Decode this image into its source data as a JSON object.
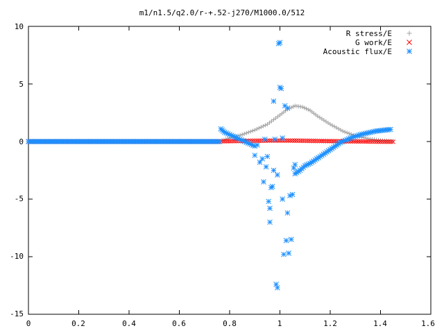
{
  "chart_data": {
    "type": "scatter",
    "title": "m1/n1.5/q2.0/r-+.52-j270/M1000.0/512",
    "xlabel": "",
    "ylabel": "",
    "xlim": [
      0,
      1.6
    ],
    "ylim": [
      -15,
      10
    ],
    "x_ticks": [
      "0",
      "0.2",
      "0.4",
      "0.6",
      "0.8",
      "1",
      "1.2",
      "1.4",
      "1.6"
    ],
    "y_ticks": [
      "10",
      "5",
      "0",
      "-5",
      "-10",
      "-15"
    ],
    "grid": false,
    "legend_position": "top-right",
    "series": [
      {
        "name": "R stress/E",
        "marker": "plus",
        "color": "#a0a0a0",
        "segments": [
          {
            "x": [
              0.0,
              0.1,
              0.2,
              0.3,
              0.4,
              0.5,
              0.6,
              0.7,
              0.76
            ],
            "y": [
              0,
              0,
              0,
              0,
              0,
              0,
              0,
              0,
              0
            ]
          },
          {
            "x": [
              0.77,
              0.8,
              0.85,
              0.9,
              0.95,
              1.0,
              1.03,
              1.06,
              1.09,
              1.12,
              1.15,
              1.2,
              1.25,
              1.3,
              1.35,
              1.4,
              1.45
            ],
            "y": [
              0.1,
              0.3,
              0.6,
              1.0,
              1.5,
              2.3,
              2.8,
              3.1,
              3.0,
              2.7,
              2.2,
              1.5,
              0.9,
              0.5,
              0.25,
              0.1,
              0.05
            ]
          }
        ]
      },
      {
        "name": "G work/E",
        "marker": "cross",
        "color": "#ff0000",
        "segments": [
          {
            "x": [
              0.0,
              0.76
            ],
            "y": [
              0,
              0
            ]
          },
          {
            "x": [
              0.77,
              0.85,
              0.95,
              1.05,
              1.15,
              1.25,
              1.35,
              1.45
            ],
            "y": [
              0.02,
              0.05,
              0.08,
              0.08,
              0.05,
              0.02,
              0.0,
              -0.02
            ]
          }
        ]
      },
      {
        "name": "Acoustic flux/E",
        "marker": "star",
        "color": "#1e90ff",
        "segments": [
          {
            "x": [
              0.0,
              0.1,
              0.2,
              0.3,
              0.4,
              0.5,
              0.6,
              0.7,
              0.76
            ],
            "y": [
              0,
              0,
              0,
              0,
              0,
              0,
              0,
              0,
              0
            ]
          },
          {
            "x": [
              0.765,
              0.78,
              0.8,
              0.82,
              0.84,
              0.86,
              0.88,
              0.9
            ],
            "y": [
              1.1,
              0.8,
              0.6,
              0.4,
              0.2,
              0.0,
              -0.2,
              -0.4
            ]
          },
          {
            "x": [
              1.06,
              1.08,
              1.1,
              1.12,
              1.14,
              1.16,
              1.18,
              1.2,
              1.22,
              1.24,
              1.26,
              1.28,
              1.3,
              1.32,
              1.34,
              1.36,
              1.38,
              1.4,
              1.42,
              1.44
            ],
            "y": [
              -2.8,
              -2.5,
              -2.1,
              -1.9,
              -1.6,
              -1.3,
              -1.0,
              -0.7,
              -0.4,
              -0.1,
              0.1,
              0.3,
              0.45,
              0.6,
              0.7,
              0.8,
              0.9,
              0.95,
              1.0,
              1.05
            ]
          }
        ],
        "scatter": {
          "x": [
            0.9,
            0.91,
            0.92,
            0.93,
            0.935,
            0.94,
            0.945,
            0.95,
            0.955,
            0.96,
            0.965,
            0.97,
            0.975,
            0.98,
            0.985,
            0.99,
            0.995,
            1.0,
            1.0,
            1.005,
            1.01,
            1.015,
            1.02,
            1.025,
            1.03,
            1.035,
            1.04,
            1.045,
            1.05,
            1.055,
            1.06,
            0.96,
            0.975,
            0.99,
            1.01,
            1.03
          ],
          "y": [
            -1.2,
            -0.3,
            -1.8,
            -1.5,
            -3.5,
            0.2,
            -2.2,
            -1.3,
            -5.2,
            -7.0,
            -4.0,
            -3.9,
            3.5,
            0.2,
            -12.4,
            -12.7,
            8.5,
            8.6,
            4.7,
            4.6,
            -5.0,
            -9.8,
            3.1,
            -8.6,
            -6.2,
            -9.7,
            -4.7,
            -8.5,
            -4.6,
            -2.3,
            -2.0,
            -5.8,
            -2.5,
            -2.9,
            0.3,
            2.9
          ]
        }
      }
    ]
  }
}
